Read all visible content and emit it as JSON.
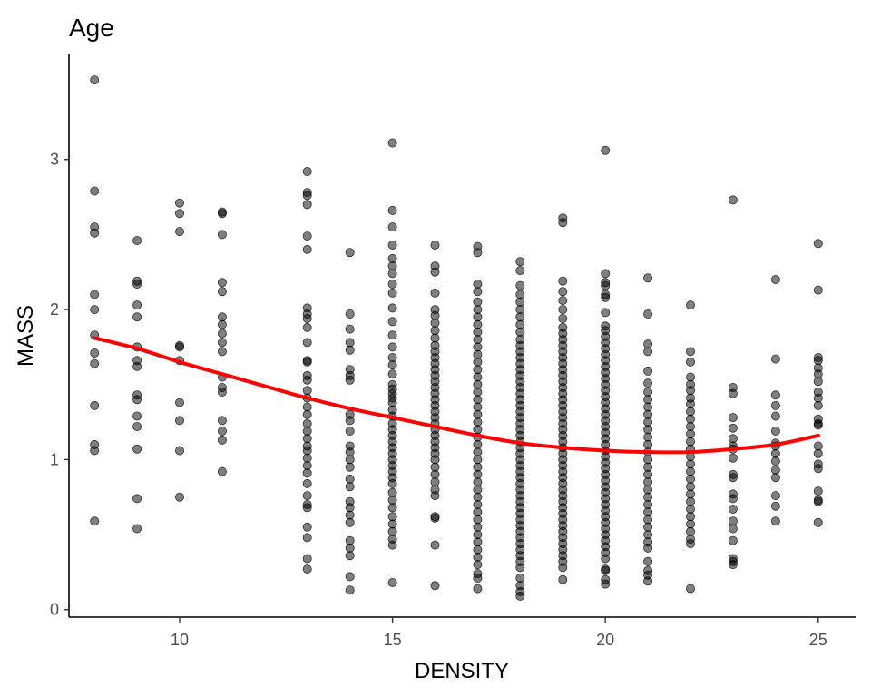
{
  "chart_data": {
    "type": "scatter",
    "title": "Age",
    "xlabel": "DENSITY",
    "ylabel": "MASS",
    "xlim": [
      7.4,
      25.9
    ],
    "ylim": [
      -0.05,
      3.7
    ],
    "xticks": [
      10,
      15,
      20,
      25
    ],
    "yticks": [
      0,
      1,
      2,
      3
    ],
    "grid": false,
    "legend": "none",
    "point_color": "#000000",
    "trend_color": "#ff0000",
    "points": {
      "8": [
        3.53,
        2.79,
        2.55,
        2.51,
        2.1,
        2.0,
        1.83,
        1.71,
        1.64,
        1.36,
        1.1,
        1.06,
        0.59
      ],
      "9": [
        2.46,
        2.19,
        2.17,
        2.03,
        1.95,
        1.75,
        1.66,
        1.62,
        1.43,
        1.4,
        1.29,
        1.22,
        1.07,
        0.74,
        0.54
      ],
      "10": [
        2.71,
        2.64,
        2.52,
        1.76,
        1.75,
        1.66,
        1.38,
        1.26,
        1.06,
        0.75
      ],
      "11": [
        2.65,
        2.64,
        2.5,
        2.18,
        2.12,
        1.95,
        1.9,
        1.84,
        1.78,
        1.72,
        1.55,
        1.48,
        1.45,
        1.26,
        1.19,
        1.13,
        0.92
      ],
      "13": [
        2.92,
        2.78,
        2.76,
        2.7,
        2.49,
        2.4,
        2.01,
        1.97,
        1.94,
        1.88,
        1.78,
        1.66,
        1.65,
        1.56,
        1.53,
        1.46,
        1.41,
        1.35,
        1.3,
        1.24,
        1.19,
        1.14,
        1.09,
        1.06,
        1.01,
        0.96,
        0.91,
        0.84,
        0.76,
        0.7,
        0.68,
        0.55,
        0.48,
        0.34,
        0.27
      ],
      "14": [
        2.38,
        1.97,
        1.87,
        1.78,
        1.73,
        1.6,
        1.56,
        1.53,
        1.3,
        1.26,
        1.19,
        1.09,
        1.05,
        1.0,
        0.95,
        0.87,
        0.82,
        0.72,
        0.68,
        0.63,
        0.58,
        0.46,
        0.41,
        0.36,
        0.22,
        0.13
      ],
      "15": [
        3.11,
        2.66,
        2.55,
        2.43,
        2.34,
        2.29,
        2.24,
        2.17,
        2.11,
        2.01,
        1.92,
        1.83,
        1.75,
        1.68,
        1.63,
        1.57,
        1.5,
        1.47,
        1.44,
        1.41,
        1.38,
        1.33,
        1.29,
        1.24,
        1.2,
        1.16,
        1.12,
        1.08,
        1.04,
        1.0,
        0.96,
        0.92,
        0.88,
        0.84,
        0.78,
        0.73,
        0.68,
        0.62,
        0.57,
        0.52,
        0.47,
        0.43,
        0.18
      ],
      "16": [
        2.43,
        2.29,
        2.25,
        2.11,
        2.0,
        1.96,
        1.91,
        1.86,
        1.81,
        1.76,
        1.72,
        1.68,
        1.64,
        1.6,
        1.56,
        1.52,
        1.48,
        1.44,
        1.4,
        1.36,
        1.32,
        1.28,
        1.24,
        1.2,
        1.16,
        1.12,
        1.08,
        1.04,
        1.0,
        0.95,
        0.9,
        0.85,
        0.8,
        0.76,
        0.62,
        0.61,
        0.43,
        0.16
      ],
      "17": [
        2.42,
        2.38,
        2.17,
        2.12,
        2.05,
        2.0,
        1.95,
        1.9,
        1.85,
        1.8,
        1.75,
        1.7,
        1.65,
        1.6,
        1.55,
        1.5,
        1.45,
        1.4,
        1.35,
        1.3,
        1.25,
        1.2,
        1.15,
        1.1,
        1.05,
        1.0,
        0.95,
        0.9,
        0.85,
        0.8,
        0.75,
        0.7,
        0.65,
        0.6,
        0.55,
        0.5,
        0.45,
        0.4,
        0.35,
        0.3,
        0.24,
        0.21,
        0.14
      ],
      "18": [
        2.32,
        2.26,
        2.16,
        2.1,
        2.05,
        2.0,
        1.95,
        1.9,
        1.85,
        1.8,
        1.76,
        1.72,
        1.68,
        1.64,
        1.6,
        1.56,
        1.52,
        1.48,
        1.44,
        1.4,
        1.36,
        1.32,
        1.28,
        1.24,
        1.2,
        1.16,
        1.12,
        1.08,
        1.04,
        1.0,
        0.96,
        0.92,
        0.88,
        0.84,
        0.8,
        0.76,
        0.72,
        0.68,
        0.64,
        0.6,
        0.56,
        0.52,
        0.48,
        0.44,
        0.4,
        0.36,
        0.32,
        0.28,
        0.21,
        0.16,
        0.12,
        0.09
      ],
      "19": [
        2.61,
        2.58,
        2.19,
        2.12,
        2.06,
        2.0,
        1.94,
        1.88,
        1.84,
        1.8,
        1.76,
        1.72,
        1.68,
        1.64,
        1.6,
        1.56,
        1.52,
        1.48,
        1.44,
        1.4,
        1.36,
        1.32,
        1.28,
        1.24,
        1.2,
        1.16,
        1.12,
        1.08,
        1.04,
        1.0,
        0.96,
        0.92,
        0.88,
        0.84,
        0.8,
        0.76,
        0.72,
        0.68,
        0.64,
        0.6,
        0.56,
        0.52,
        0.48,
        0.44,
        0.4,
        0.36,
        0.32,
        0.28,
        0.2
      ],
      "20": [
        3.06,
        2.24,
        2.18,
        2.16,
        2.1,
        2.08,
        1.98,
        1.89,
        1.86,
        1.82,
        1.78,
        1.74,
        1.7,
        1.66,
        1.62,
        1.58,
        1.54,
        1.5,
        1.46,
        1.42,
        1.38,
        1.34,
        1.3,
        1.26,
        1.22,
        1.18,
        1.14,
        1.1,
        1.06,
        1.02,
        0.98,
        0.94,
        0.9,
        0.86,
        0.82,
        0.78,
        0.74,
        0.7,
        0.66,
        0.62,
        0.58,
        0.54,
        0.5,
        0.46,
        0.42,
        0.38,
        0.34,
        0.27,
        0.26,
        0.2,
        0.17
      ],
      "21": [
        2.21,
        1.97,
        1.77,
        1.72,
        1.59,
        1.51,
        1.45,
        1.4,
        1.35,
        1.3,
        1.25,
        1.2,
        1.15,
        1.1,
        1.05,
        1.0,
        0.95,
        0.9,
        0.85,
        0.8,
        0.75,
        0.7,
        0.65,
        0.6,
        0.55,
        0.5,
        0.45,
        0.41,
        0.32,
        0.26,
        0.23,
        0.19
      ],
      "22": [
        2.03,
        1.72,
        1.65,
        1.55,
        1.5,
        1.46,
        1.41,
        1.37,
        1.32,
        1.27,
        1.22,
        1.17,
        1.12,
        1.07,
        1.02,
        0.97,
        0.92,
        0.87,
        0.82,
        0.77,
        0.72,
        0.67,
        0.62,
        0.57,
        0.52,
        0.47,
        0.44,
        0.14
      ],
      "23": [
        2.73,
        1.48,
        1.44,
        1.28,
        1.21,
        1.14,
        1.09,
        1.07,
        1.01,
        0.9,
        0.88,
        0.77,
        0.74,
        0.67,
        0.59,
        0.54,
        0.46,
        0.34,
        0.32,
        0.3
      ],
      "24": [
        2.2,
        1.67,
        1.43,
        1.36,
        1.29,
        1.19,
        1.11,
        1.09,
        1.04,
        0.99,
        0.93,
        0.88,
        0.76,
        0.69,
        0.59
      ],
      "25": [
        2.44,
        2.13,
        1.68,
        1.66,
        1.61,
        1.57,
        1.52,
        1.45,
        1.41,
        1.36,
        1.27,
        1.24,
        1.23,
        1.09,
        1.04,
        0.97,
        0.94,
        0.79,
        0.73,
        0.72,
        0.58
      ]
    },
    "trend": {
      "type": "loess",
      "x": [
        8,
        9,
        10,
        11,
        12,
        13,
        14,
        15,
        16,
        17,
        18,
        19,
        20,
        21,
        22,
        23,
        24,
        25
      ],
      "y": [
        1.81,
        1.74,
        1.65,
        1.57,
        1.49,
        1.41,
        1.34,
        1.28,
        1.22,
        1.16,
        1.11,
        1.08,
        1.06,
        1.05,
        1.05,
        1.07,
        1.1,
        1.16
      ]
    }
  }
}
